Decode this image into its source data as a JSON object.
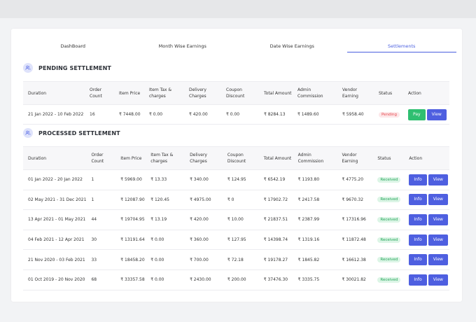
{
  "tabs": [
    {
      "label": "DashBoard",
      "active": false
    },
    {
      "label": "Month Wise Earnings",
      "active": false
    },
    {
      "label": "Date Wise Earnings",
      "active": false
    },
    {
      "label": "Settlements",
      "active": true
    }
  ],
  "pending": {
    "title": "PENDING SETTLEMENT",
    "icon": "users-icon",
    "columns": [
      "Duration",
      "Order Count",
      "Item Price",
      "Item Tax & charges",
      "Delivery Charges",
      "Coupon Discount",
      "Total Amount",
      "Admin Commission",
      "Vendor Earning",
      "Status",
      "Action"
    ],
    "rows": [
      {
        "duration": "21 Jan 2022 - 10 Feb 2022",
        "order_count": "16",
        "item_price": "₹ 7448.00",
        "item_tax": "₹ 0.00",
        "delivery": "₹ 420.00",
        "coupon": "₹ 0.00",
        "total": "₹ 8284.13",
        "admin": "₹ 1489.60",
        "vendor": "₹ 5958.40",
        "status": "Pending",
        "actions": [
          "Pay",
          "View"
        ]
      }
    ]
  },
  "processed": {
    "title": "PROCESSED SETTLEMENT",
    "icon": "users-icon",
    "columns": [
      "Duration",
      "Order Count",
      "Item Price",
      "Item Tax & charges",
      "Delivery Charges",
      "Coupon Discount",
      "Total Amount",
      "Admin Commission",
      "Vendor Earning",
      "Status",
      "Action"
    ],
    "rows": [
      {
        "duration": "01 Jan 2022 - 20 Jan 2022",
        "order_count": "1",
        "item_price": "₹ 5969.00",
        "item_tax": "₹ 13.33",
        "delivery": "₹ 340.00",
        "coupon": "₹ 124.95",
        "total": "₹ 6542.19",
        "admin": "₹ 1193.80",
        "vendor": "₹ 4775.20",
        "status": "Received",
        "actions": [
          "Info",
          "View"
        ]
      },
      {
        "duration": "02 May 2021 - 31 Dec 2021",
        "order_count": "1",
        "item_price": "₹ 12087.90",
        "item_tax": "₹ 120.45",
        "delivery": "₹ 4975.00",
        "coupon": "₹ 0",
        "total": "₹ 17902.72",
        "admin": "₹ 2417.58",
        "vendor": "₹ 9670.32",
        "status": "Received",
        "actions": [
          "Info",
          "View"
        ]
      },
      {
        "duration": "13 Apr 2021 - 01 May 2021",
        "order_count": "44",
        "item_price": "₹ 19704.95",
        "item_tax": "₹ 13.19",
        "delivery": "₹ 420.00",
        "coupon": "₹ 10.00",
        "total": "₹ 21837.51",
        "admin": "₹ 2387.99",
        "vendor": "₹ 17316.96",
        "status": "Received",
        "actions": [
          "Info",
          "View"
        ]
      },
      {
        "duration": "04 Feb 2021 - 12 Apr 2021",
        "order_count": "30",
        "item_price": "₹ 13191.64",
        "item_tax": "₹ 0.00",
        "delivery": "₹ 360.00",
        "coupon": "₹ 127.95",
        "total": "₹ 14398.74",
        "admin": "₹ 1319.16",
        "vendor": "₹ 11872.48",
        "status": "Received",
        "actions": [
          "Info",
          "View"
        ]
      },
      {
        "duration": "21 Nov 2020 - 03 Feb 2021",
        "order_count": "33",
        "item_price": "₹ 18458.20",
        "item_tax": "₹ 0.00",
        "delivery": "₹ 700.00",
        "coupon": "₹ 72.18",
        "total": "₹ 19178.27",
        "admin": "₹ 1845.82",
        "vendor": "₹ 16612.38",
        "status": "Received",
        "actions": [
          "Info",
          "View"
        ]
      },
      {
        "duration": "01 Oct 2019 - 20 Nov 2020",
        "order_count": "68",
        "item_price": "₹ 33357.58",
        "item_tax": "₹ 0.00",
        "delivery": "₹ 2430.00",
        "coupon": "₹ 200.00",
        "total": "₹ 37476.30",
        "admin": "₹ 3335.75",
        "vendor": "₹ 30021.82",
        "status": "Received",
        "actions": [
          "Info",
          "View"
        ]
      }
    ]
  },
  "colors": {
    "accent": "#4e5fe0",
    "pay": "#2fbf71",
    "pending": "#e5484d",
    "received": "#26a65b"
  }
}
